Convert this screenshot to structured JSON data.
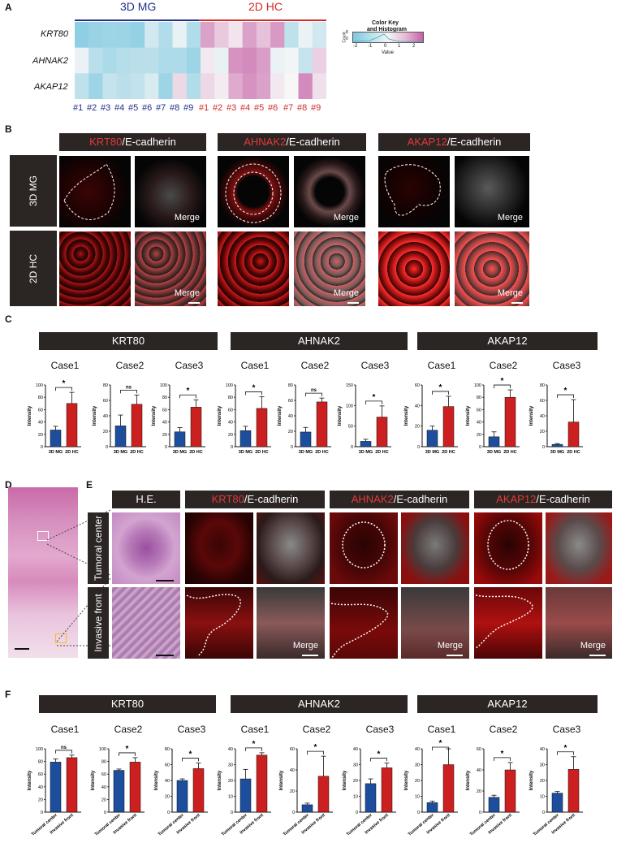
{
  "panel_A": {
    "label": "A",
    "group_left": "3D MG",
    "group_right": "2D HC",
    "genes": [
      "KRT80",
      "AHNAK2",
      "AKAP12"
    ],
    "cols_left": [
      "#1",
      "#2",
      "#3",
      "#4",
      "#5",
      "#6",
      "#7",
      "#8",
      "#9"
    ],
    "cols_right": [
      "#1",
      "#2",
      "#3",
      "#4",
      "#5",
      "#6",
      "#7",
      "#8",
      "#9"
    ],
    "heat": [
      [
        0.82,
        0.75,
        0.7,
        0.72,
        0.78,
        0.3,
        0.55,
        0.12,
        0.55,
        -0.55,
        -0.3,
        -0.12,
        -0.55,
        -0.35,
        -0.6,
        0.45,
        0.1,
        0.3
      ],
      [
        0.1,
        0.5,
        0.6,
        0.52,
        0.48,
        0.48,
        0.58,
        0.58,
        0.7,
        -0.1,
        0.12,
        -0.65,
        -0.7,
        -0.58,
        0.1,
        0.05,
        0.38,
        -0.25
      ],
      [
        0.45,
        0.7,
        0.4,
        0.48,
        0.42,
        0.25,
        0.7,
        -0.2,
        0.55,
        -0.2,
        -0.08,
        -0.5,
        -0.65,
        -0.55,
        -0.1,
        0.0,
        -0.7,
        -0.15
      ]
    ],
    "color_key": {
      "title_1": "Color Key",
      "title_2": "and Histogram",
      "ylab": "Count",
      "yticks": [
        "0",
        "8"
      ],
      "xticks": [
        "-2",
        "-1",
        "0",
        "1",
        "2"
      ],
      "xlabel": "Value"
    }
  },
  "panel_B": {
    "label": "B",
    "headers": [
      {
        "gene": "KRT80",
        "rest": "/E-cadherin"
      },
      {
        "gene": "AHNAK2",
        "rest": "/E-cadherin"
      },
      {
        "gene": "AKAP12",
        "rest": "/E-cadherin"
      }
    ],
    "rows": [
      "3D MG",
      "2D HC"
    ],
    "merge": "Merge"
  },
  "panel_C": {
    "label": "C",
    "genes": [
      "KRT80",
      "AHNAK2",
      "AKAP12"
    ],
    "sig": "*",
    "ns": "ns"
  },
  "panel_D": {
    "label": "D"
  },
  "panel_E": {
    "label": "E",
    "he": "H.E.",
    "headers": [
      {
        "gene": "KRT80",
        "rest": "/E-cadherin"
      },
      {
        "gene": "AHNAK2",
        "rest": "/E-cadherin"
      },
      {
        "gene": "AKAP12",
        "rest": "/E-cadherin"
      }
    ],
    "rows": [
      "Tumoral center",
      "Invasive front"
    ],
    "merge": "Merge"
  },
  "panel_F": {
    "label": "F",
    "genes": [
      "KRT80",
      "AHNAK2",
      "AKAP12"
    ],
    "sig": "*",
    "ns": "ns"
  },
  "chart_data": [
    {
      "type": "bar",
      "panel": "C",
      "gene": "KRT80",
      "title": "Case1",
      "ylabel": "Intensity",
      "categories": [
        "3D MG",
        "2D HC"
      ],
      "values": [
        27,
        70
      ],
      "errors": [
        6,
        18
      ],
      "ylim": [
        0,
        100
      ],
      "yticks": [
        0,
        20,
        40,
        60,
        80,
        100
      ],
      "sig": "*",
      "colors": [
        "#1d4e9e",
        "#cc1f1f"
      ]
    },
    {
      "type": "bar",
      "panel": "C",
      "gene": "KRT80",
      "title": "Case2",
      "ylabel": "Intensity",
      "categories": [
        "3D MG",
        "2D HC"
      ],
      "values": [
        27,
        55
      ],
      "errors": [
        14,
        12
      ],
      "ylim": [
        0,
        80
      ],
      "yticks": [
        0,
        20,
        40,
        60,
        80
      ],
      "sig": "ns",
      "colors": [
        "#1d4e9e",
        "#cc1f1f"
      ]
    },
    {
      "type": "bar",
      "panel": "C",
      "gene": "KRT80",
      "title": "Case3",
      "ylabel": "Intensity",
      "categories": [
        "3D MG",
        "2D HC"
      ],
      "values": [
        24,
        64
      ],
      "errors": [
        7,
        12
      ],
      "ylim": [
        0,
        100
      ],
      "yticks": [
        0,
        20,
        40,
        60,
        80,
        100
      ],
      "sig": "*",
      "colors": [
        "#1d4e9e",
        "#cc1f1f"
      ]
    },
    {
      "type": "bar",
      "panel": "C",
      "gene": "AHNAK2",
      "title": "Case1",
      "ylabel": "Intensity",
      "categories": [
        "3D MG",
        "2D HC"
      ],
      "values": [
        26,
        62
      ],
      "errors": [
        7,
        19
      ],
      "ylim": [
        0,
        100
      ],
      "yticks": [
        0,
        20,
        40,
        60,
        80,
        100
      ],
      "sig": "*",
      "colors": [
        "#1d4e9e",
        "#cc1f1f"
      ]
    },
    {
      "type": "bar",
      "panel": "C",
      "gene": "AHNAK2",
      "title": "Case2",
      "ylabel": "Intensity",
      "categories": [
        "3D MG",
        "2D HC"
      ],
      "values": [
        19,
        58
      ],
      "errors": [
        6,
        5
      ],
      "ylim": [
        0,
        80
      ],
      "yticks": [
        0,
        20,
        40,
        60,
        80
      ],
      "sig": "ns",
      "colors": [
        "#1d4e9e",
        "#cc1f1f"
      ]
    },
    {
      "type": "bar",
      "panel": "C",
      "gene": "AHNAK2",
      "title": "Case3",
      "ylabel": "Intensity",
      "categories": [
        "3D MG",
        "2D HC"
      ],
      "values": [
        13,
        72
      ],
      "errors": [
        5,
        27
      ],
      "ylim": [
        0,
        150
      ],
      "yticks": [
        0,
        50,
        100,
        150
      ],
      "sig": "*",
      "colors": [
        "#1d4e9e",
        "#cc1f1f"
      ]
    },
    {
      "type": "bar",
      "panel": "C",
      "gene": "AKAP12",
      "title": "Case1",
      "ylabel": "Intensity",
      "categories": [
        "3D MG",
        "2D HC"
      ],
      "values": [
        16,
        39
      ],
      "errors": [
        4,
        10
      ],
      "ylim": [
        0,
        60
      ],
      "yticks": [
        0,
        20,
        40,
        60
      ],
      "sig": "*",
      "colors": [
        "#1d4e9e",
        "#cc1f1f"
      ]
    },
    {
      "type": "bar",
      "panel": "C",
      "gene": "AKAP12",
      "title": "Case2",
      "ylabel": "Intensity",
      "categories": [
        "3D MG",
        "2D HC"
      ],
      "values": [
        16,
        80
      ],
      "errors": [
        8,
        12
      ],
      "ylim": [
        0,
        100
      ],
      "yticks": [
        0,
        20,
        40,
        60,
        80,
        100
      ],
      "sig": "*",
      "colors": [
        "#1d4e9e",
        "#cc1f1f"
      ]
    },
    {
      "type": "bar",
      "panel": "C",
      "gene": "AKAP12",
      "title": "Case3",
      "ylabel": "Intensity",
      "categories": [
        "3D MG",
        "2D HC"
      ],
      "values": [
        3,
        32
      ],
      "errors": [
        1,
        29
      ],
      "ylim": [
        0,
        80
      ],
      "yticks": [
        0,
        20,
        40,
        60,
        80
      ],
      "sig": "*",
      "colors": [
        "#1d4e9e",
        "#cc1f1f"
      ]
    },
    {
      "type": "bar",
      "panel": "F",
      "gene": "KRT80",
      "title": "Case1",
      "ylabel": "Intensity",
      "categories": [
        "Tumoral center",
        "Invasive front"
      ],
      "values": [
        79,
        86
      ],
      "errors": [
        5,
        4
      ],
      "ylim": [
        0,
        100
      ],
      "yticks": [
        0,
        20,
        40,
        60,
        80,
        100
      ],
      "sig": "ns",
      "colors": [
        "#1d4e9e",
        "#cc1f1f"
      ]
    },
    {
      "type": "bar",
      "panel": "F",
      "gene": "KRT80",
      "title": "Case2",
      "ylabel": "Intensity",
      "categories": [
        "Tumoral center",
        "Invasive front"
      ],
      "values": [
        66,
        79
      ],
      "errors": [
        2,
        7
      ],
      "ylim": [
        0,
        100
      ],
      "yticks": [
        0,
        20,
        40,
        60,
        80,
        100
      ],
      "sig": "*",
      "colors": [
        "#1d4e9e",
        "#cc1f1f"
      ]
    },
    {
      "type": "bar",
      "panel": "F",
      "gene": "KRT80",
      "title": "Case3",
      "ylabel": "Intensity",
      "categories": [
        "Tumoral center",
        "Invasive front"
      ],
      "values": [
        40,
        55
      ],
      "errors": [
        2,
        7
      ],
      "ylim": [
        0,
        80
      ],
      "yticks": [
        0,
        20,
        40,
        60,
        80
      ],
      "sig": "*",
      "colors": [
        "#1d4e9e",
        "#cc1f1f"
      ]
    },
    {
      "type": "bar",
      "panel": "F",
      "gene": "AHNAK2",
      "title": "Case1",
      "ylabel": "Intensity",
      "categories": [
        "Tumoral center",
        "Invasive front"
      ],
      "values": [
        21,
        36
      ],
      "errors": [
        6,
        1.5
      ],
      "ylim": [
        0,
        40
      ],
      "yticks": [
        0,
        10,
        20,
        30,
        40
      ],
      "sig": "*",
      "colors": [
        "#1d4e9e",
        "#cc1f1f"
      ]
    },
    {
      "type": "bar",
      "panel": "F",
      "gene": "AHNAK2",
      "title": "Case2",
      "ylabel": "Intensity",
      "categories": [
        "Tumoral center",
        "Invasive front"
      ],
      "values": [
        7,
        34
      ],
      "errors": [
        1.5,
        19
      ],
      "ylim": [
        0,
        60
      ],
      "yticks": [
        0,
        20,
        40,
        60
      ],
      "sig": "*",
      "colors": [
        "#1d4e9e",
        "#cc1f1f"
      ]
    },
    {
      "type": "bar",
      "panel": "F",
      "gene": "AHNAK2",
      "title": "Case3",
      "ylabel": "Intensity",
      "categories": [
        "Tumoral center",
        "Invasive front"
      ],
      "values": [
        18,
        28
      ],
      "errors": [
        3,
        3
      ],
      "ylim": [
        0,
        40
      ],
      "yticks": [
        0,
        10,
        20,
        30,
        40
      ],
      "sig": "*",
      "colors": [
        "#1d4e9e",
        "#cc1f1f"
      ]
    },
    {
      "type": "bar",
      "panel": "F",
      "gene": "AKAP12",
      "title": "Case1",
      "ylabel": "Intensity",
      "categories": [
        "Tumoral center",
        "Invasive front"
      ],
      "values": [
        6,
        30
      ],
      "errors": [
        1,
        15
      ],
      "ylim": [
        0,
        40
      ],
      "yticks": [
        0,
        10,
        20,
        30,
        40
      ],
      "sig": "*",
      "colors": [
        "#1d4e9e",
        "#cc1f1f"
      ]
    },
    {
      "type": "bar",
      "panel": "F",
      "gene": "AKAP12",
      "title": "Case2",
      "ylabel": "Intensity",
      "categories": [
        "Tumoral center",
        "Invasive front"
      ],
      "values": [
        14,
        40
      ],
      "errors": [
        2,
        7
      ],
      "ylim": [
        0,
        60
      ],
      "yticks": [
        0,
        20,
        40,
        60
      ],
      "sig": "*",
      "colors": [
        "#1d4e9e",
        "#cc1f1f"
      ]
    },
    {
      "type": "bar",
      "panel": "F",
      "gene": "AKAP12",
      "title": "Case3",
      "ylabel": "Intensity",
      "categories": [
        "Tumoral center",
        "Invasive front"
      ],
      "values": [
        12,
        27
      ],
      "errors": [
        1,
        8
      ],
      "ylim": [
        0,
        40
      ],
      "yticks": [
        0,
        10,
        20,
        30,
        40
      ],
      "sig": "*",
      "colors": [
        "#1d4e9e",
        "#cc1f1f"
      ]
    }
  ]
}
